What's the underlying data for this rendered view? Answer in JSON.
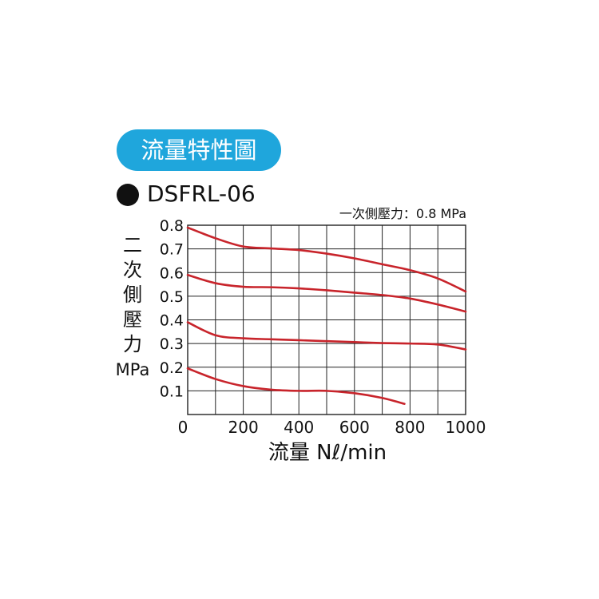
{
  "header": {
    "badge_title": "流量特性圖",
    "model": "DSFRL-06",
    "condition": "一次側壓力：0.8 MPa"
  },
  "colors": {
    "badge": "#1fa6dc",
    "curve": "#c8242b",
    "grid": "#222222"
  },
  "chart_data": {
    "type": "line",
    "title": "流量特性圖",
    "subtitle": "DSFRL-06",
    "annotation": "一次側壓力：0.8 MPa",
    "xlabel": "流量 Nℓ/min",
    "ylabel_chars": [
      "二",
      "次",
      "側",
      "壓",
      "力"
    ],
    "ylabel_unit": "MPa",
    "xlim": [
      0,
      1000
    ],
    "ylim": [
      0,
      0.8
    ],
    "x_ticks": [
      0,
      200,
      400,
      600,
      800,
      1000
    ],
    "x_tick_labels": [
      "0",
      "200",
      "400",
      "600",
      "800",
      "1000"
    ],
    "y_ticks": [
      0.1,
      0.2,
      0.3,
      0.4,
      0.5,
      0.6,
      0.7,
      0.8
    ],
    "y_tick_labels": [
      "0.1",
      "0.2",
      "0.3",
      "0.4",
      "0.5",
      "0.6",
      "0.7",
      "0.8"
    ],
    "grid": true,
    "grid_x_step": 100,
    "grid_y_step": 0.1,
    "series": [
      {
        "x": [
          0,
          100,
          200,
          300,
          400,
          500,
          600,
          700,
          800,
          900,
          1000
        ],
        "y": [
          0.79,
          0.745,
          0.71,
          0.702,
          0.695,
          0.68,
          0.66,
          0.635,
          0.61,
          0.575,
          0.52
        ]
      },
      {
        "x": [
          0,
          100,
          200,
          300,
          400,
          500,
          600,
          700,
          800,
          900,
          1000
        ],
        "y": [
          0.59,
          0.555,
          0.54,
          0.538,
          0.533,
          0.525,
          0.515,
          0.505,
          0.49,
          0.465,
          0.435
        ]
      },
      {
        "x": [
          0,
          100,
          200,
          300,
          400,
          500,
          600,
          700,
          800,
          900,
          1000
        ],
        "y": [
          0.39,
          0.335,
          0.322,
          0.318,
          0.314,
          0.31,
          0.306,
          0.302,
          0.3,
          0.296,
          0.275
        ]
      },
      {
        "x": [
          0,
          100,
          200,
          300,
          400,
          500,
          600,
          700,
          780
        ],
        "y": [
          0.195,
          0.15,
          0.12,
          0.105,
          0.1,
          0.1,
          0.09,
          0.07,
          0.045
        ]
      }
    ]
  }
}
